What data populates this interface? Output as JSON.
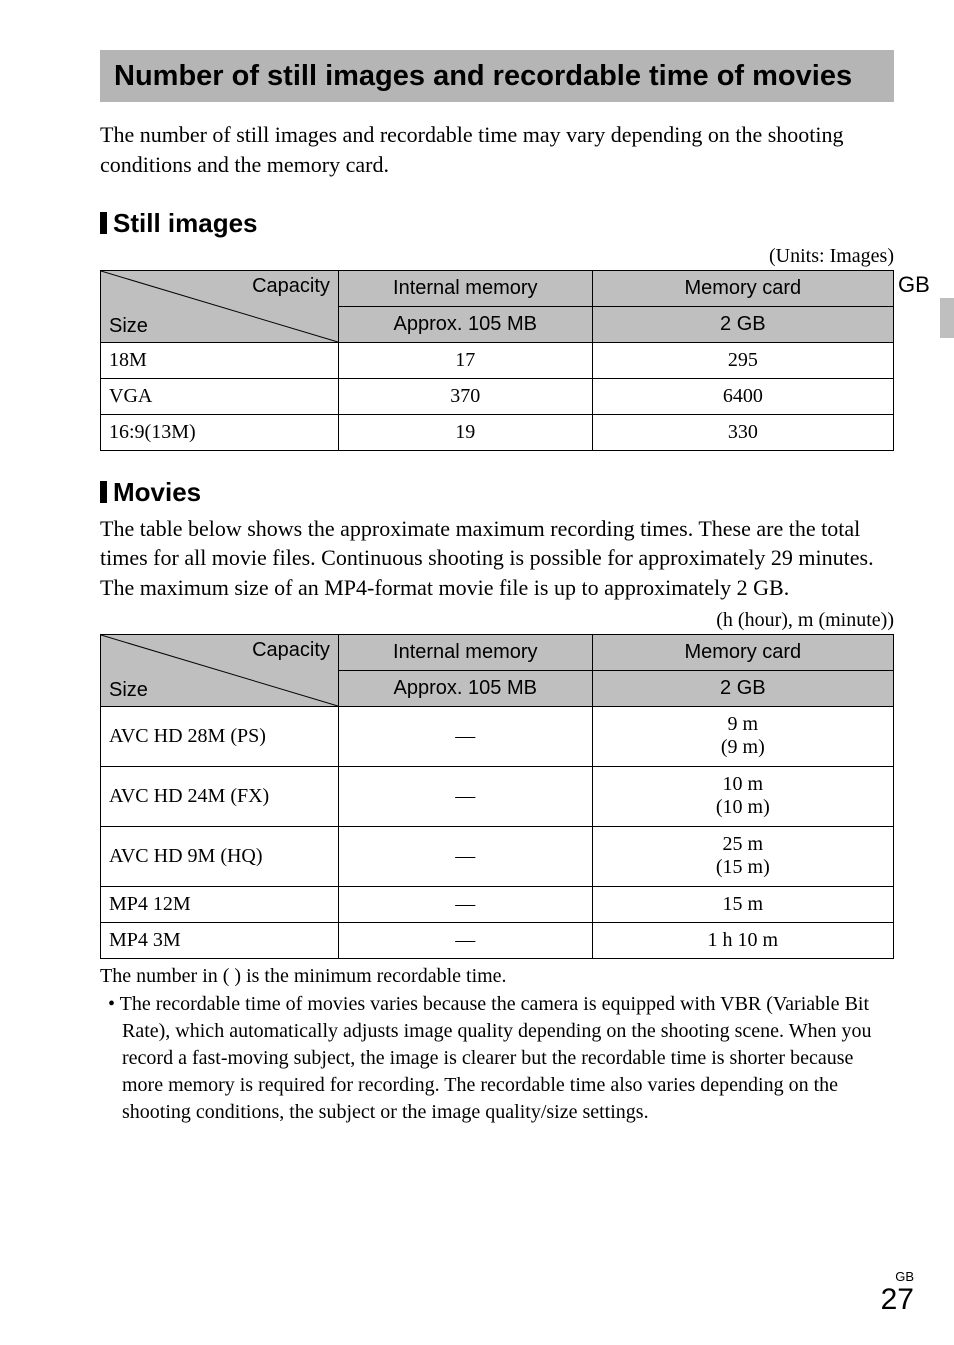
{
  "title": "Number of still images and recordable time of movies",
  "intro": "The number of still images and recordable time may vary depending on the shooting conditions and the memory card.",
  "gb_tab": "GB",
  "still": {
    "heading": "Still images",
    "units": "(Units: Images)",
    "diag_top": "Capacity",
    "diag_bot": "Size",
    "col_internal": "Internal memory",
    "col_card": "Memory card",
    "sub_internal": "Approx. 105 MB",
    "sub_card": "2 GB",
    "rows": [
      {
        "label": "18M",
        "internal": "17",
        "card": "295"
      },
      {
        "label": "VGA",
        "internal": "370",
        "card": "6400"
      },
      {
        "label": "16:9(13M)",
        "internal": "19",
        "card": "330"
      }
    ],
    "col_widths": [
      "30%",
      "32%",
      "38%"
    ]
  },
  "movies": {
    "heading": "Movies",
    "para": "The table below shows the approximate maximum recording times. These are the total times for all movie files. Continuous shooting is possible for approximately 29 minutes. The maximum size of an MP4-format movie file is up to approximately 2 GB.",
    "units": "(h (hour), m (minute))",
    "diag_top": "Capacity",
    "diag_bot": "Size",
    "col_internal": "Internal memory",
    "col_card": "Memory card",
    "sub_internal": "Approx. 105 MB",
    "sub_card": "2 GB",
    "rows": [
      {
        "label": "AVC HD 28M (PS)",
        "internal": "—",
        "card": "9 m\n(9 m)",
        "tall": true
      },
      {
        "label": "AVC HD 24M (FX)",
        "internal": "—",
        "card": "10 m\n(10 m)",
        "tall": true
      },
      {
        "label": "AVC HD 9M (HQ)",
        "internal": "—",
        "card": "25 m\n(15 m)",
        "tall": true
      },
      {
        "label": "MP4 12M",
        "internal": "—",
        "card": "15 m",
        "tall": false
      },
      {
        "label": "MP4 3M",
        "internal": "—",
        "card": "1 h 10 m",
        "tall": false
      }
    ],
    "col_widths": [
      "30%",
      "32%",
      "38%"
    ]
  },
  "footnote": "The number in ( ) is the minimum recordable time.",
  "bullet": "• The recordable time of movies varies because the camera is equipped with VBR (Variable Bit Rate), which automatically adjusts image quality depending on the shooting scene. When you record a fast-moving subject, the image is clearer but the recordable time is shorter because more memory is required for recording. The recordable time also varies depending on the shooting conditions, the subject or the image quality/size settings.",
  "page": {
    "gb": "GB",
    "num": "27"
  }
}
